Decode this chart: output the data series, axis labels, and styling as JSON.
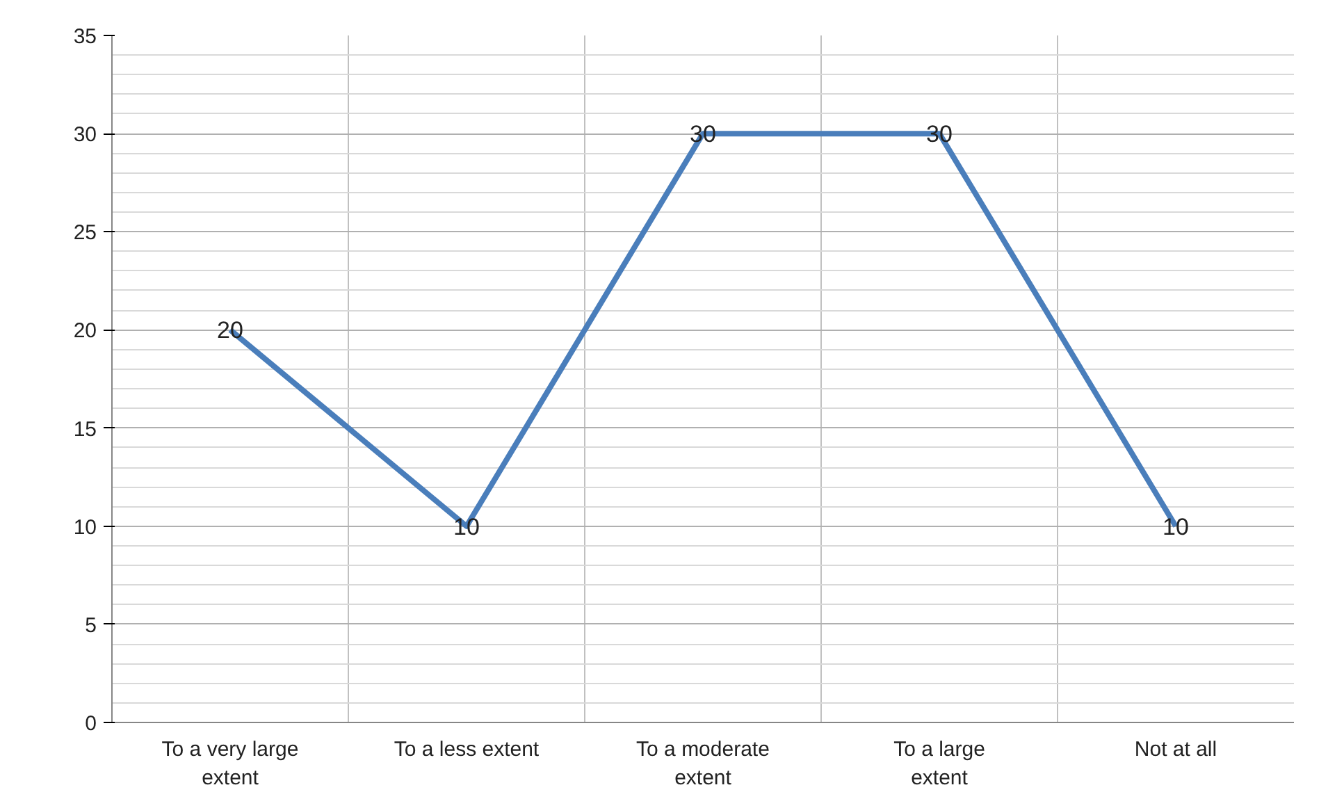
{
  "chart_data": {
    "type": "line",
    "categories": [
      "To a very large extent",
      "To a less extent",
      "To a moderate extent",
      "To a large extent",
      "Not at all"
    ],
    "series": [
      {
        "color": "#4a7ebb",
        "values": [
          20,
          10,
          30,
          30,
          10
        ]
      }
    ],
    "ylim": [
      0,
      35
    ],
    "yticks": [
      0,
      5,
      10,
      15,
      20,
      25,
      30,
      35
    ],
    "grid": true,
    "data_labels": true,
    "line_style": "solid"
  }
}
